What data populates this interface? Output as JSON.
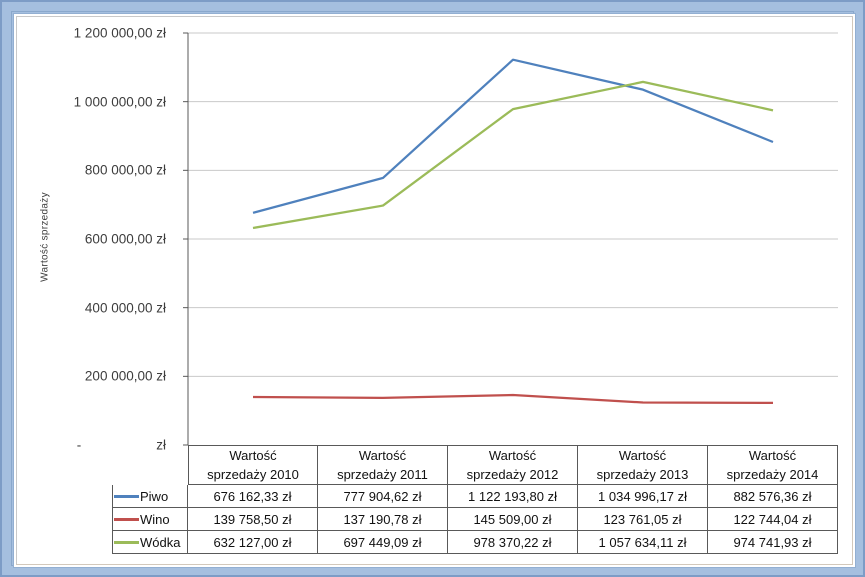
{
  "chart_data": {
    "type": "line",
    "title": "",
    "ylabel": "Wartość sprzedaży",
    "xlabel": "",
    "ylim": [
      0,
      1200000
    ],
    "grid": true,
    "legend_position": "data-table-left",
    "gridline_color": "#c9c9c9",
    "axis_color": "#595959",
    "y_ticks": [
      {
        "value": 0,
        "label": "-                    zł"
      },
      {
        "value": 200000,
        "label": "200 000,00 zł"
      },
      {
        "value": 400000,
        "label": "400 000,00 zł"
      },
      {
        "value": 600000,
        "label": "600 000,00 zł"
      },
      {
        "value": 800000,
        "label": "800 000,00 zł"
      },
      {
        "value": 1000000,
        "label": "1 000 000,00 zł"
      },
      {
        "value": 1200000,
        "label": "1 200 000,00 zł"
      }
    ],
    "categories": [
      {
        "line1": "Wartość",
        "line2": "sprzedaży 2010"
      },
      {
        "line1": "Wartość",
        "line2": "sprzedaży 2011"
      },
      {
        "line1": "Wartość",
        "line2": "sprzedaży 2012"
      },
      {
        "line1": "Wartość",
        "line2": "sprzedaży 2013"
      },
      {
        "line1": "Wartość",
        "line2": "sprzedaży 2014"
      }
    ],
    "series": [
      {
        "name": "Piwo",
        "color": "#4F81BD",
        "values": [
          676162.33,
          777904.62,
          1122193.8,
          1034996.17,
          882576.36
        ],
        "labels": [
          "676 162,33 zł",
          "777 904,62 zł",
          "1 122 193,80 zł",
          "1 034 996,17 zł",
          "882 576,36 zł"
        ]
      },
      {
        "name": "Wino",
        "color": "#C0504D",
        "values": [
          139758.5,
          137190.78,
          145509.0,
          123761.05,
          122744.04
        ],
        "labels": [
          "139 758,50 zł",
          "137 190,78 zł",
          "145 509,00 zł",
          "123 761,05 zł",
          "122 744,04 zł"
        ]
      },
      {
        "name": "Wódka",
        "color": "#9BBB59",
        "values": [
          632127.0,
          697449.09,
          978370.22,
          1057634.11,
          974741.93
        ],
        "labels": [
          "632 127,00 zł",
          "697 449,09 zł",
          "978 370,22 zł",
          "1 057 634,11 zł",
          "974 741,93 zł"
        ]
      }
    ]
  }
}
